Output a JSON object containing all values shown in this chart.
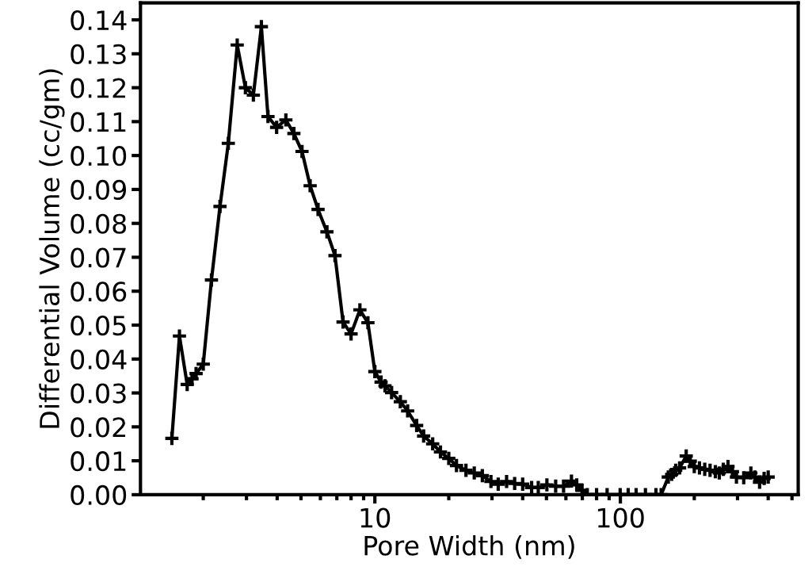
{
  "chart_data": {
    "type": "line",
    "xlabel": "Pore Width (nm)",
    "ylabel": "Differential Volume (cc/gm)",
    "log": "x",
    "grid": false,
    "marker": "cross",
    "line_style": "solid",
    "xlim": [
      1.11,
      530
    ],
    "xticks": [
      10,
      100
    ],
    "ylim": [
      0,
      0.145
    ],
    "yticks": [
      {
        "value": 0,
        "label": "0.00"
      },
      {
        "value": 0.01,
        "label": "0.01"
      },
      {
        "value": 0.02,
        "label": "0.02"
      },
      {
        "value": 0.03,
        "label": "0.03"
      },
      {
        "value": 0.04,
        "label": "0.04"
      },
      {
        "value": 0.05,
        "label": "0.05"
      },
      {
        "value": 0.06,
        "label": "0.06"
      },
      {
        "value": 0.07,
        "label": "0.07"
      },
      {
        "value": 0.08,
        "label": "0.08"
      },
      {
        "value": 0.09,
        "label": "0.09"
      },
      {
        "value": 0.1,
        "label": "0.10"
      },
      {
        "value": 0.11,
        "label": "0.11"
      },
      {
        "value": 0.12,
        "label": "0.12"
      },
      {
        "value": 0.13,
        "label": "0.13"
      },
      {
        "value": 0.14,
        "label": "0.14"
      }
    ],
    "series": [
      {
        "color": "#000000",
        "x": [
          1.49,
          1.6,
          1.72,
          1.8,
          1.87,
          2.0,
          2.16,
          2.34,
          2.53,
          2.75,
          2.97,
          3.2,
          3.45,
          3.67,
          3.98,
          4.34,
          4.68,
          5.05,
          5.45,
          5.87,
          6.38,
          6.88,
          7.42,
          8.0,
          8.69,
          9.37,
          10.0,
          10.6,
          11.0,
          11.7,
          12.7,
          13.6,
          14.8,
          15.8,
          17.2,
          18.5,
          20.0,
          21.5,
          23.5,
          25.4,
          27.4,
          29.7,
          31.8,
          34.4,
          37.1,
          40.0,
          43.5,
          46.3,
          50.2,
          54.5,
          58.7,
          63.2,
          66.4,
          69.8,
          73.3,
          80.0,
          88.3,
          99.8,
          107.6,
          115.9,
          126.5,
          139.6,
          146.6,
          156.7,
          161.8,
          168,
          174.3,
          185.4,
          192.6,
          200,
          210,
          220.6,
          231.9,
          243.7,
          252.9,
          262.6,
          274.4,
          286,
          297,
          318,
          340,
          353,
          369,
          385,
          400
        ],
        "values": [
          0.0166,
          0.0468,
          0.0325,
          0.0342,
          0.0357,
          0.0385,
          0.0633,
          0.085,
          0.1036,
          0.1326,
          0.12,
          0.1178,
          0.138,
          0.1115,
          0.1083,
          0.1105,
          0.1065,
          0.1012,
          0.0911,
          0.0841,
          0.0775,
          0.0705,
          0.0509,
          0.0474,
          0.0545,
          0.0507,
          0.0363,
          0.0332,
          0.0321,
          0.0301,
          0.0274,
          0.0247,
          0.0204,
          0.0173,
          0.015,
          0.0126,
          0.0107,
          0.0086,
          0.0072,
          0.0064,
          0.0056,
          0.0039,
          0.0031,
          0.0039,
          0.0033,
          0.0031,
          0.0021,
          0.0021,
          0.0029,
          0.0025,
          0.0025,
          0.004,
          0.0029,
          0.0013,
          0,
          0,
          0,
          0,
          0,
          0,
          0,
          0,
          0,
          0.0052,
          0.006,
          0.0072,
          0.0079,
          0.0114,
          0.0099,
          0.0083,
          0.0079,
          0.0075,
          0.0072,
          0.0068,
          0.0064,
          0.0075,
          0.0083,
          0.0068,
          0.0052,
          0.005,
          0.0064,
          0.0052,
          0.0037,
          0.0048,
          0.0052
        ]
      }
    ]
  }
}
